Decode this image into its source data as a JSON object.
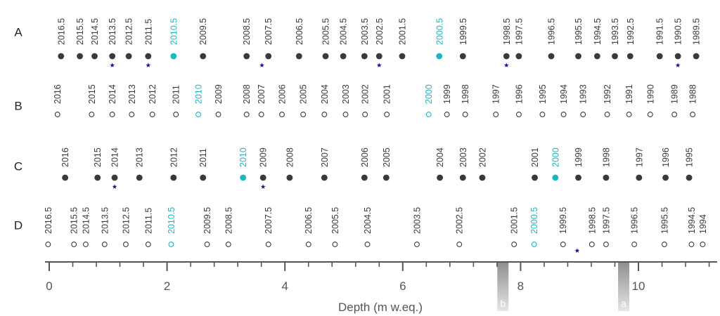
{
  "colors": {
    "marker": "#3a3a3a",
    "highlight": "#1ab8c4",
    "star": "#1a1a8c",
    "axis": "#555555",
    "label": "#555555"
  },
  "rows": [
    {
      "id": "A",
      "label": "A",
      "marker": "filled",
      "points": [
        {
          "t": "2016.5",
          "d": 0.2
        },
        {
          "t": "2015.5",
          "d": 0.52
        },
        {
          "t": "2014.5",
          "d": 0.77
        },
        {
          "t": "2013.5",
          "d": 1.07,
          "star": true
        },
        {
          "t": "2012.5",
          "d": 1.35
        },
        {
          "t": "2011.5",
          "d": 1.68,
          "star": true
        },
        {
          "t": "2010.5",
          "d": 2.11,
          "hl": true
        },
        {
          "t": "2009.5",
          "d": 2.61
        },
        {
          "t": "2008.5",
          "d": 3.35
        },
        {
          "t": "2007.5",
          "d": 3.72
        },
        {
          "t": "2006.5",
          "d": 4.24
        },
        {
          "t": "2005.5",
          "d": 4.69
        },
        {
          "t": "2004.5",
          "d": 4.99
        },
        {
          "t": "2003.5",
          "d": 5.35
        },
        {
          "t": "2002.5",
          "d": 5.6,
          "star": true
        },
        {
          "t": "2001.5",
          "d": 5.99
        },
        {
          "t": "2000.5",
          "d": 6.62,
          "hl": true
        },
        {
          "t": "1999.5",
          "d": 7.02
        },
        {
          "t": "1998.5",
          "d": 7.76,
          "star": true
        },
        {
          "t": "1997.5",
          "d": 7.97
        },
        {
          "t": "1996.5",
          "d": 8.52
        },
        {
          "t": "1995.5",
          "d": 8.98
        },
        {
          "t": "1994.5",
          "d": 9.3
        },
        {
          "t": "1993.5",
          "d": 9.6
        },
        {
          "t": "1992.5",
          "d": 9.86
        },
        {
          "t": "1991.5",
          "d": 10.36
        },
        {
          "t": "1990.5",
          "d": 10.67,
          "star": true
        },
        {
          "t": "1989.5",
          "d": 10.98
        }
      ],
      "extra_stars": [
        3.61
      ]
    },
    {
      "id": "B",
      "label": "B",
      "marker": "open",
      "points": [
        {
          "t": "2016",
          "d": 0.14
        },
        {
          "t": "2015",
          "d": 0.72
        },
        {
          "t": "2014",
          "d": 1.07
        },
        {
          "t": "2013",
          "d": 1.4
        },
        {
          "t": "2012",
          "d": 1.75
        },
        {
          "t": "2011",
          "d": 2.15
        },
        {
          "t": "2010",
          "d": 2.53,
          "hl": true
        },
        {
          "t": "2009",
          "d": 2.87
        },
        {
          "t": "2008",
          "d": 3.35
        },
        {
          "t": "2007",
          "d": 3.6
        },
        {
          "t": "2006",
          "d": 3.95
        },
        {
          "t": "2005",
          "d": 4.31
        },
        {
          "t": "2004",
          "d": 4.67
        },
        {
          "t": "2003",
          "d": 5.03
        },
        {
          "t": "2002",
          "d": 5.36
        },
        {
          "t": "2001",
          "d": 5.73
        },
        {
          "t": "2000",
          "d": 6.44,
          "hl": true
        },
        {
          "t": "1999",
          "d": 6.75
        },
        {
          "t": "1998",
          "d": 7.06
        },
        {
          "t": "1997",
          "d": 7.58
        },
        {
          "t": "1996",
          "d": 7.97
        },
        {
          "t": "1995",
          "d": 8.37
        },
        {
          "t": "1994",
          "d": 8.73
        },
        {
          "t": "1993",
          "d": 9.06
        },
        {
          "t": "1992",
          "d": 9.47
        },
        {
          "t": "1991",
          "d": 9.84
        },
        {
          "t": "1990",
          "d": 10.2
        },
        {
          "t": "1989",
          "d": 10.61
        },
        {
          "t": "1988",
          "d": 10.92
        }
      ],
      "extra_stars": []
    },
    {
      "id": "C",
      "label": "C",
      "marker": "filled",
      "points": [
        {
          "t": "2016",
          "d": 0.27
        },
        {
          "t": "2015",
          "d": 0.82
        },
        {
          "t": "2014",
          "d": 1.11,
          "star": true
        },
        {
          "t": "2013",
          "d": 1.53
        },
        {
          "t": "2012",
          "d": 2.11
        },
        {
          "t": "2011",
          "d": 2.61
        },
        {
          "t": "2010",
          "d": 3.29,
          "hl": true
        },
        {
          "t": "2009",
          "d": 3.63,
          "star": true
        },
        {
          "t": "2008",
          "d": 4.08
        },
        {
          "t": "2007",
          "d": 4.67
        },
        {
          "t": "2006",
          "d": 5.35
        },
        {
          "t": "2005",
          "d": 5.72
        },
        {
          "t": "2004",
          "d": 6.63
        },
        {
          "t": "2003",
          "d": 7.02
        },
        {
          "t": "2002",
          "d": 7.35
        },
        {
          "t": "2001",
          "d": 8.24
        },
        {
          "t": "2000",
          "d": 8.59,
          "hl": true
        },
        {
          "t": "1999",
          "d": 8.98
        },
        {
          "t": "1998",
          "d": 9.45
        },
        {
          "t": "1997",
          "d": 10.01
        },
        {
          "t": "1996",
          "d": 10.46
        },
        {
          "t": "1995",
          "d": 10.86
        }
      ],
      "extra_stars": []
    },
    {
      "id": "D",
      "label": "D",
      "marker": "open",
      "points": [
        {
          "t": "2016.5",
          "d": -0.02
        },
        {
          "t": "2015.5",
          "d": 0.42
        },
        {
          "t": "2014.5",
          "d": 0.62
        },
        {
          "t": "2013.5",
          "d": 0.94
        },
        {
          "t": "2012.5",
          "d": 1.3
        },
        {
          "t": "2011.5",
          "d": 1.68
        },
        {
          "t": "2010.5",
          "d": 2.07,
          "hl": true
        },
        {
          "t": "2009.5",
          "d": 2.68
        },
        {
          "t": "2008.5",
          "d": 3.04
        },
        {
          "t": "2007.5",
          "d": 3.72
        },
        {
          "t": "2006.5",
          "d": 4.4
        },
        {
          "t": "2005.5",
          "d": 4.85
        },
        {
          "t": "2004.5",
          "d": 5.4
        },
        {
          "t": "2003.5",
          "d": 6.24
        },
        {
          "t": "2002.5",
          "d": 6.96
        },
        {
          "t": "2001.5",
          "d": 7.89
        },
        {
          "t": "2000.5",
          "d": 8.23,
          "hl": true
        },
        {
          "t": "1999.5",
          "d": 8.72
        },
        {
          "t": "1998.5",
          "d": 9.21
        },
        {
          "t": "1997.5",
          "d": 9.45
        },
        {
          "t": "1996.5",
          "d": 9.93
        },
        {
          "t": "1995.5",
          "d": 10.44
        },
        {
          "t": "1994.5",
          "d": 10.9
        },
        {
          "t": "1994",
          "d": 11.09
        }
      ],
      "extra_stars": [
        8.96
      ]
    }
  ],
  "axis": {
    "title": "Depth (m w.eq.)",
    "min": 0,
    "max": 11.2,
    "major_ticks": [
      0,
      2,
      4,
      6,
      8,
      10
    ],
    "minor_step": 0.4
  },
  "markers": [
    {
      "label": "b",
      "d": 7.7
    },
    {
      "label": "a",
      "d": 9.75
    }
  ]
}
